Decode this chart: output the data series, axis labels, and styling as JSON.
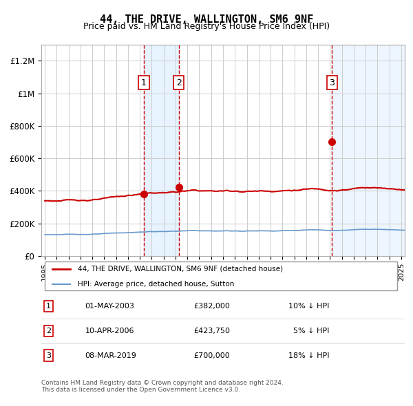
{
  "title": "44, THE DRIVE, WALLINGTON, SM6 9NF",
  "subtitle": "Price paid vs. HM Land Registry's House Price Index (HPI)",
  "ylabel": "",
  "background_color": "#ffffff",
  "plot_bg_color": "#ffffff",
  "grid_color": "#cccccc",
  "hpi_line_color": "#6699cc",
  "hpi_fill_color": "#ddeeff",
  "price_line_color": "#cc0000",
  "marker_color": "#cc0000",
  "ylim": [
    0,
    1300000
  ],
  "yticks": [
    0,
    200000,
    400000,
    600000,
    800000,
    1000000,
    1200000
  ],
  "ytick_labels": [
    "£0",
    "£200K",
    "£400K",
    "£600K",
    "£800K",
    "£1M",
    "£1.2M"
  ],
  "sale_dates_num": [
    2003.33,
    2006.27,
    2019.18
  ],
  "sale_prices": [
    382000,
    423750,
    700000
  ],
  "sale_labels": [
    "1",
    "2",
    "3"
  ],
  "shade_regions": [
    [
      2003.33,
      2006.27
    ]
  ],
  "legend_entries": [
    {
      "label": "44, THE DRIVE, WALLINGTON, SM6 9NF (detached house)",
      "color": "#cc0000",
      "lw": 2
    },
    {
      "label": "HPI: Average price, detached house, Sutton",
      "color": "#6699cc",
      "lw": 1.5
    }
  ],
  "table_rows": [
    {
      "num": "1",
      "date": "01-MAY-2003",
      "price": "£382,000",
      "hpi": "10% ↓ HPI"
    },
    {
      "num": "2",
      "date": "10-APR-2006",
      "price": "£423,750",
      "hpi": "  5% ↓ HPI"
    },
    {
      "num": "3",
      "date": "08-MAR-2019",
      "price": "£700,000",
      "hpi": "18% ↓ HPI"
    }
  ],
  "footer": "Contains HM Land Registry data © Crown copyright and database right 2024.\nThis data is licensed under the Open Government Licence v3.0.",
  "xmin": 1995,
  "xmax": 2025
}
